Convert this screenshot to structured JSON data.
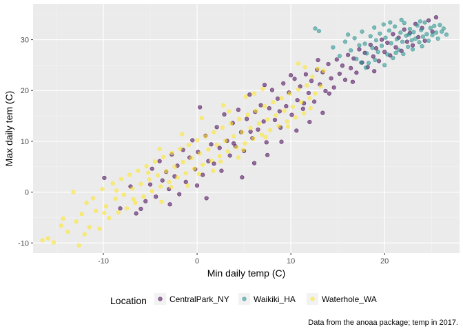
{
  "chart_data": {
    "type": "scatter",
    "xlabel": "Min daily temp (C)",
    "ylabel": "Max daily tem (C)",
    "caption": "Data from the anoaa package; temp in 2017.",
    "xlim": [
      -17.5,
      28
    ],
    "ylim": [
      -12,
      37
    ],
    "x_ticks": [
      -10,
      0,
      10,
      20
    ],
    "y_ticks": [
      -10,
      0,
      10,
      20,
      30
    ],
    "grid": true,
    "legend": {
      "title": "Location",
      "position": "bottom",
      "entries": [
        "CentralPark_NY",
        "Waikiki_HA",
        "Waterhole_WA"
      ]
    },
    "series": [
      {
        "name": "CentralPark_NY",
        "color": "#440154",
        "points": [
          [
            -9.9,
            2.8
          ],
          [
            -8.2,
            -3.2
          ],
          [
            -7.1,
            1.1
          ],
          [
            -6.5,
            -4.2
          ],
          [
            -6.0,
            -3.3
          ],
          [
            -5.5,
            -1.8
          ],
          [
            -5.0,
            1.5
          ],
          [
            -4.8,
            4.6
          ],
          [
            -4.4,
            -0.9
          ],
          [
            -4.0,
            6.1
          ],
          [
            -3.7,
            2.3
          ],
          [
            -3.3,
            4.0
          ],
          [
            -3.0,
            0.6
          ],
          [
            -2.7,
            7.4
          ],
          [
            -2.4,
            3.1
          ],
          [
            -2.1,
            5.2
          ],
          [
            -1.9,
            -0.4
          ],
          [
            -1.5,
            8.3
          ],
          [
            -1.2,
            2.0
          ],
          [
            -0.8,
            6.8
          ],
          [
            -0.5,
            10.2
          ],
          [
            -0.2,
            4.5
          ],
          [
            0.1,
            7.9
          ],
          [
            0.3,
            16.7
          ],
          [
            0.6,
            3.4
          ],
          [
            0.9,
            11.1
          ],
          [
            1.2,
            6.1
          ],
          [
            1.5,
            9.4
          ],
          [
            1.8,
            5.6
          ],
          [
            2.1,
            12.8
          ],
          [
            2.4,
            8.7
          ],
          [
            2.6,
            4.2
          ],
          [
            2.9,
            15.3
          ],
          [
            3.2,
            10.1
          ],
          [
            3.5,
            7.2
          ],
          [
            3.8,
            13.6
          ],
          [
            4.1,
            9.0
          ],
          [
            4.4,
            16.2
          ],
          [
            4.7,
            11.8
          ],
          [
            5.0,
            8.1
          ],
          [
            5.3,
            14.4
          ],
          [
            5.6,
            19.2
          ],
          [
            5.9,
            10.6
          ],
          [
            6.2,
            15.8
          ],
          [
            6.5,
            12.3
          ],
          [
            6.8,
            17.1
          ],
          [
            7.1,
            13.9
          ],
          [
            7.4,
            9.8
          ],
          [
            7.7,
            16.5
          ],
          [
            8.0,
            20.1
          ],
          [
            8.3,
            14.2
          ],
          [
            8.6,
            18.4
          ],
          [
            8.9,
            12.7
          ],
          [
            9.2,
            21.4
          ],
          [
            9.5,
            16.9
          ],
          [
            9.8,
            19.6
          ],
          [
            10.1,
            15.2
          ],
          [
            10.4,
            22.3
          ],
          [
            10.7,
            18.1
          ],
          [
            11.0,
            20.8
          ],
          [
            11.3,
            16.4
          ],
          [
            11.6,
            23.2
          ],
          [
            11.9,
            19.5
          ],
          [
            12.2,
            21.9
          ],
          [
            12.5,
            17.8
          ],
          [
            12.8,
            24.1
          ],
          [
            13.1,
            21.2
          ],
          [
            13.4,
            23.6
          ],
          [
            13.7,
            19.9
          ],
          [
            14.0,
            25.2
          ],
          [
            14.3,
            22.4
          ],
          [
            14.6,
            20.6
          ],
          [
            14.9,
            26.1
          ],
          [
            15.2,
            23.3
          ],
          [
            15.5,
            24.9
          ],
          [
            15.8,
            22.1
          ],
          [
            16.1,
            27.0
          ],
          [
            16.4,
            24.4
          ],
          [
            16.7,
            26.3
          ],
          [
            17.0,
            23.5
          ],
          [
            17.3,
            28.1
          ],
          [
            17.6,
            25.5
          ],
          [
            17.9,
            27.4
          ],
          [
            18.2,
            24.6
          ],
          [
            18.5,
            29.0
          ],
          [
            18.8,
            26.7
          ],
          [
            19.1,
            28.3
          ],
          [
            19.4,
            25.8
          ],
          [
            19.7,
            30.0
          ],
          [
            20.0,
            27.6
          ],
          [
            20.3,
            29.4
          ],
          [
            20.6,
            26.9
          ],
          [
            20.9,
            31.1
          ],
          [
            21.2,
            28.5
          ],
          [
            21.5,
            30.4
          ],
          [
            21.8,
            27.8
          ],
          [
            22.1,
            32.0
          ],
          [
            22.4,
            29.6
          ],
          [
            22.7,
            31.3
          ],
          [
            23.0,
            28.9
          ],
          [
            23.3,
            33.1
          ],
          [
            23.6,
            30.5
          ],
          [
            24.0,
            32.3
          ],
          [
            24.3,
            29.8
          ],
          [
            24.7,
            33.8
          ],
          [
            25.1,
            31.6
          ],
          [
            25.5,
            34.4
          ],
          [
            4.8,
            2.9
          ],
          [
            6.1,
            5.7
          ],
          [
            7.5,
            7.3
          ],
          [
            9.0,
            9.9
          ],
          [
            10.6,
            12.1
          ],
          [
            12.0,
            13.8
          ],
          [
            13.4,
            15.6
          ],
          [
            3.9,
            9.6
          ],
          [
            1.0,
            -1.2
          ],
          [
            -2.9,
            -2.4
          ],
          [
            0.0,
            1.3
          ],
          [
            5.7,
            11.9
          ],
          [
            8.8,
            15.9
          ],
          [
            11.4,
            17.5
          ],
          [
            14.1,
            19.4
          ],
          [
            16.6,
            21.7
          ],
          [
            18.9,
            23.8
          ],
          [
            12.9,
            26.0
          ],
          [
            10.0,
            23.0
          ],
          [
            7.2,
            21.1
          ]
        ]
      },
      {
        "name": "Waikiki_HA",
        "color": "#21908C",
        "points": [
          [
            12.6,
            32.2
          ],
          [
            13.0,
            31.7
          ],
          [
            14.5,
            28.5
          ],
          [
            15.2,
            26.8
          ],
          [
            15.8,
            29.6
          ],
          [
            16.1,
            31.0
          ],
          [
            16.4,
            27.9
          ],
          [
            16.8,
            30.3
          ],
          [
            17.0,
            26.2
          ],
          [
            17.3,
            28.9
          ],
          [
            17.6,
            31.6
          ],
          [
            17.9,
            29.2
          ],
          [
            18.1,
            27.3
          ],
          [
            18.3,
            25.4
          ],
          [
            18.5,
            30.7
          ],
          [
            18.7,
            28.4
          ],
          [
            18.9,
            32.4
          ],
          [
            19.1,
            29.9
          ],
          [
            19.3,
            27.6
          ],
          [
            19.5,
            31.2
          ],
          [
            19.7,
            28.8
          ],
          [
            19.9,
            33.0
          ],
          [
            20.1,
            30.4
          ],
          [
            20.3,
            27.1
          ],
          [
            20.5,
            31.8
          ],
          [
            20.7,
            29.3
          ],
          [
            20.9,
            26.4
          ],
          [
            21.1,
            32.6
          ],
          [
            21.3,
            30.1
          ],
          [
            21.5,
            28.0
          ],
          [
            21.7,
            31.4
          ],
          [
            21.9,
            29.6
          ],
          [
            22.1,
            33.3
          ],
          [
            22.3,
            30.8
          ],
          [
            22.5,
            28.6
          ],
          [
            22.7,
            32.1
          ],
          [
            22.9,
            29.9
          ],
          [
            23.1,
            31.5
          ],
          [
            23.3,
            30.2
          ],
          [
            23.5,
            32.8
          ],
          [
            23.7,
            29.5
          ],
          [
            23.9,
            31.9
          ],
          [
            24.1,
            30.6
          ],
          [
            24.3,
            33.4
          ],
          [
            24.5,
            31.1
          ],
          [
            24.7,
            29.8
          ],
          [
            24.9,
            32.3
          ],
          [
            25.1,
            30.9
          ],
          [
            25.3,
            32.7
          ],
          [
            25.5,
            31.4
          ],
          [
            25.7,
            30.2
          ],
          [
            25.9,
            32.9
          ],
          [
            26.1,
            31.6
          ],
          [
            26.3,
            32.2
          ],
          [
            26.6,
            31.0
          ],
          [
            19.0,
            26.0
          ],
          [
            20.0,
            25.0
          ],
          [
            21.2,
            27.4
          ],
          [
            18.0,
            24.5
          ],
          [
            22.0,
            27.2
          ],
          [
            23.0,
            28.1
          ],
          [
            24.0,
            28.7
          ],
          [
            17.5,
            25.5
          ],
          [
            20.6,
            33.4
          ],
          [
            21.8,
            33.9
          ],
          [
            22.6,
            31.0
          ],
          [
            23.8,
            33.6
          ]
        ]
      },
      {
        "name": "Waterhole_WA",
        "color": "#FDE725",
        "points": [
          [
            -16.5,
            -9.5
          ],
          [
            -15.9,
            -9.1
          ],
          [
            -15.3,
            -9.9
          ],
          [
            -14.5,
            -6.6
          ],
          [
            -14.3,
            -5.2
          ],
          [
            -13.8,
            -7.8
          ],
          [
            -13.2,
            0.0
          ],
          [
            -12.9,
            -5.8
          ],
          [
            -12.6,
            -10.5
          ],
          [
            -12.3,
            -4.3
          ],
          [
            -11.8,
            -2.1
          ],
          [
            -11.5,
            -6.9
          ],
          [
            -11.1,
            -1.2
          ],
          [
            -10.8,
            -3.7
          ],
          [
            -10.4,
            -7.2
          ],
          [
            -10.1,
            0.6
          ],
          [
            -9.7,
            -2.8
          ],
          [
            -9.4,
            -5.1
          ],
          [
            -9.0,
            1.7
          ],
          [
            -8.7,
            -1.3
          ],
          [
            -8.4,
            -4.0
          ],
          [
            -8.1,
            2.6
          ],
          [
            -7.8,
            -0.5
          ],
          [
            -7.5,
            -3.2
          ],
          [
            -7.2,
            3.4
          ],
          [
            -6.9,
            0.7
          ],
          [
            -6.6,
            -2.1
          ],
          [
            -6.3,
            4.2
          ],
          [
            -6.0,
            1.6
          ],
          [
            -5.7,
            -0.9
          ],
          [
            -5.4,
            5.1
          ],
          [
            -5.1,
            2.5
          ],
          [
            -4.8,
            0.2
          ],
          [
            -4.5,
            6.0
          ],
          [
            -4.2,
            3.3
          ],
          [
            -3.9,
            1.1
          ],
          [
            -3.6,
            6.9
          ],
          [
            -3.3,
            4.1
          ],
          [
            -3.0,
            2.0
          ],
          [
            -2.7,
            7.7
          ],
          [
            -2.4,
            5.0
          ],
          [
            -2.1,
            2.9
          ],
          [
            -1.8,
            8.5
          ],
          [
            -1.5,
            5.9
          ],
          [
            -1.2,
            3.7
          ],
          [
            -0.9,
            9.3
          ],
          [
            -0.6,
            6.7
          ],
          [
            -0.3,
            4.6
          ],
          [
            0.0,
            10.2
          ],
          [
            0.3,
            7.6
          ],
          [
            0.6,
            5.4
          ],
          [
            0.9,
            11.0
          ],
          [
            1.2,
            8.4
          ],
          [
            1.5,
            6.2
          ],
          [
            1.8,
            11.8
          ],
          [
            2.1,
            9.3
          ],
          [
            2.4,
            7.1
          ],
          [
            2.7,
            12.7
          ],
          [
            3.0,
            10.1
          ],
          [
            3.3,
            8.0
          ],
          [
            3.6,
            13.5
          ],
          [
            3.9,
            11.0
          ],
          [
            4.2,
            8.8
          ],
          [
            4.5,
            14.4
          ],
          [
            4.8,
            11.8
          ],
          [
            5.1,
            9.6
          ],
          [
            5.4,
            15.2
          ],
          [
            5.7,
            12.6
          ],
          [
            6.0,
            10.5
          ],
          [
            6.3,
            16.0
          ],
          [
            6.6,
            13.5
          ],
          [
            6.9,
            11.3
          ],
          [
            7.2,
            16.9
          ],
          [
            7.5,
            14.3
          ],
          [
            7.8,
            12.2
          ],
          [
            8.1,
            17.7
          ],
          [
            8.4,
            15.1
          ],
          [
            8.7,
            13.0
          ],
          [
            9.0,
            18.5
          ],
          [
            9.3,
            16.0
          ],
          [
            9.6,
            13.9
          ],
          [
            9.9,
            19.4
          ],
          [
            10.2,
            16.8
          ],
          [
            10.5,
            14.7
          ],
          [
            10.8,
            20.2
          ],
          [
            11.1,
            17.7
          ],
          [
            11.4,
            15.5
          ],
          [
            11.7,
            21.0
          ],
          [
            12.0,
            18.5
          ],
          [
            12.3,
            22.7
          ],
          [
            12.6,
            19.4
          ],
          [
            12.9,
            24.3
          ],
          [
            13.2,
            20.8
          ],
          [
            13.5,
            23.9
          ],
          [
            11.5,
            24.6
          ],
          [
            10.8,
            25.3
          ],
          [
            -3.8,
            -1.9
          ],
          [
            -1.0,
            1.3
          ],
          [
            1.7,
            4.2
          ],
          [
            4.4,
            6.8
          ],
          [
            -6.8,
            -1.4
          ],
          [
            -9.9,
            -4.1
          ],
          [
            -12.0,
            -8.3
          ],
          [
            0.5,
            14.6
          ],
          [
            2.8,
            17.1
          ],
          [
            5.2,
            18.8
          ],
          [
            7.0,
            20.3
          ],
          [
            -4.0,
            8.5
          ],
          [
            -1.6,
            11.4
          ],
          [
            3.4,
            15.9
          ],
          [
            6.1,
            19.4
          ],
          [
            -8.6,
            0.3
          ],
          [
            -5.2,
            3.8
          ],
          [
            -2.8,
            1.0
          ],
          [
            0.2,
            3.6
          ],
          [
            2.5,
            6.0
          ],
          [
            4.9,
            8.3
          ],
          [
            7.3,
            10.8
          ],
          [
            9.7,
            12.9
          ],
          [
            12.1,
            16.5
          ]
        ]
      }
    ]
  }
}
